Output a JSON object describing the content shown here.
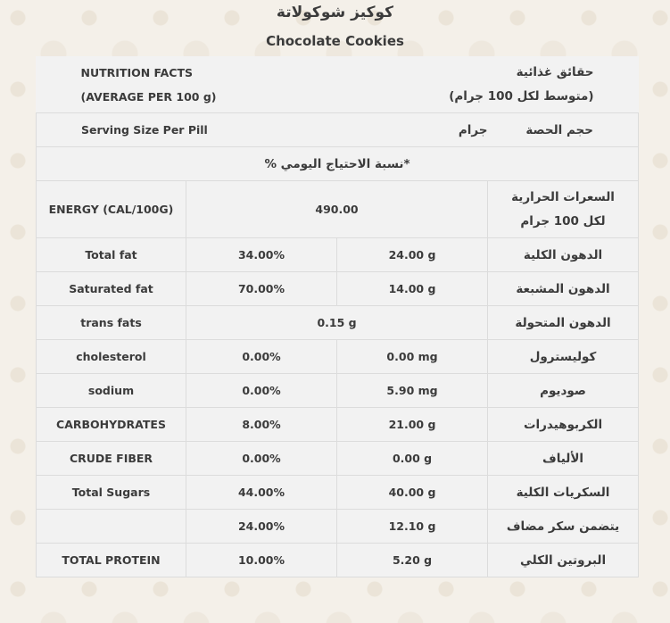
{
  "title_ar": "كوكيز شوكولاتة",
  "title_en": "Chocolate Cookies",
  "header": {
    "en_line1": "NUTRITION FACTS",
    "en_line2": "(AVERAGE PER 100 g)",
    "ar_line1": "حقائق غذائية",
    "ar_line2": "(متوسط لكل 100 جرام)"
  },
  "serving": {
    "en": "Serving Size Per Pill",
    "value": "جرام",
    "ar": "حجم الحصة"
  },
  "daily_note": "*نسبة الاحتياج اليومي %",
  "energy": {
    "en": "ENERGY (CAL/100G)",
    "value": "490.00",
    "ar_line1": "السعرات الحرارية",
    "ar_line2": "لكل 100 جرام"
  },
  "rows": [
    {
      "en": "Total fat",
      "pct": "34.00%",
      "amount": "24.00 g",
      "ar": "الدهون الكلية"
    },
    {
      "en": "Saturated fat",
      "pct": "70.00%",
      "amount": "14.00 g",
      "ar": "الدهون المشبعة"
    },
    {
      "en": "trans fats",
      "amount": "0.15 g",
      "ar": "الدهون المتحولة"
    },
    {
      "en": "cholesterol",
      "pct": "0.00%",
      "amount": "0.00 mg",
      "ar": "كوليسترول"
    },
    {
      "en": "sodium",
      "pct": "0.00%",
      "amount": "5.90 mg",
      "ar": "صوديوم"
    },
    {
      "en": "CARBOHYDRATES",
      "pct": "8.00%",
      "amount": "21.00 g",
      "ar": "الكربوهيدرات"
    },
    {
      "en": "CRUDE FIBER",
      "pct": "0.00%",
      "amount": "0.00 g",
      "ar": "الألياف"
    },
    {
      "en": "Total Sugars",
      "pct": "44.00%",
      "amount": "40.00 g",
      "ar": "السكريات الكلية"
    },
    {
      "en": "",
      "pct": "24.00%",
      "amount": "12.10 g",
      "ar": "يتضمن سكر مضاف"
    },
    {
      "en": "TOTAL PROTEIN",
      "pct": "10.00%",
      "amount": "5.20 g",
      "ar": "البروتين الكلي"
    }
  ]
}
